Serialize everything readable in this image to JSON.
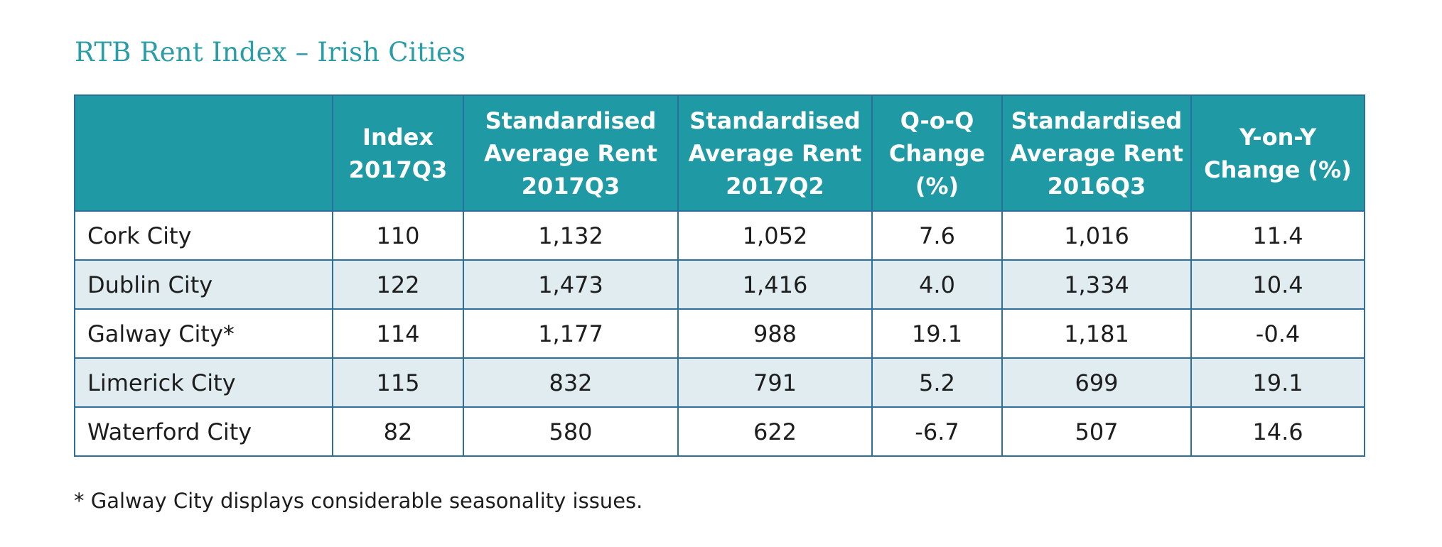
{
  "title": "RTB Rent Index – Irish Cities",
  "table": {
    "headers": [
      "",
      "Index\n2017Q3",
      "Standardised\nAverage Rent\n2017Q3",
      "Standardised\nAverage Rent\n2017Q2",
      "Q-o-Q\nChange\n(%)",
      "Standardised\nAverage Rent\n2016Q3",
      "Y-on-Y\nChange (%)"
    ],
    "rows": [
      [
        "Cork City",
        "110",
        "1,132",
        "1,052",
        "7.6",
        "1,016",
        "11.4"
      ],
      [
        "Dublin City",
        "122",
        "1,473",
        "1,416",
        "4.0",
        "1,334",
        "10.4"
      ],
      [
        "Galway City*",
        "114",
        "1,177",
        "988",
        "19.1",
        "1,181",
        "-0.4"
      ],
      [
        "Limerick City",
        "115",
        "832",
        "791",
        "5.2",
        "699",
        "19.1"
      ],
      [
        "Waterford City",
        "82",
        "580",
        "622",
        "-6.7",
        "507",
        "14.6"
      ]
    ]
  },
  "footnote": "* Galway City displays considerable seasonality issues.",
  "colors": {
    "accent": "#2a9da7",
    "header_bg": "#1f99a4",
    "alt_row_bg": "#e0ecf0",
    "border": "#2c6f9a"
  }
}
